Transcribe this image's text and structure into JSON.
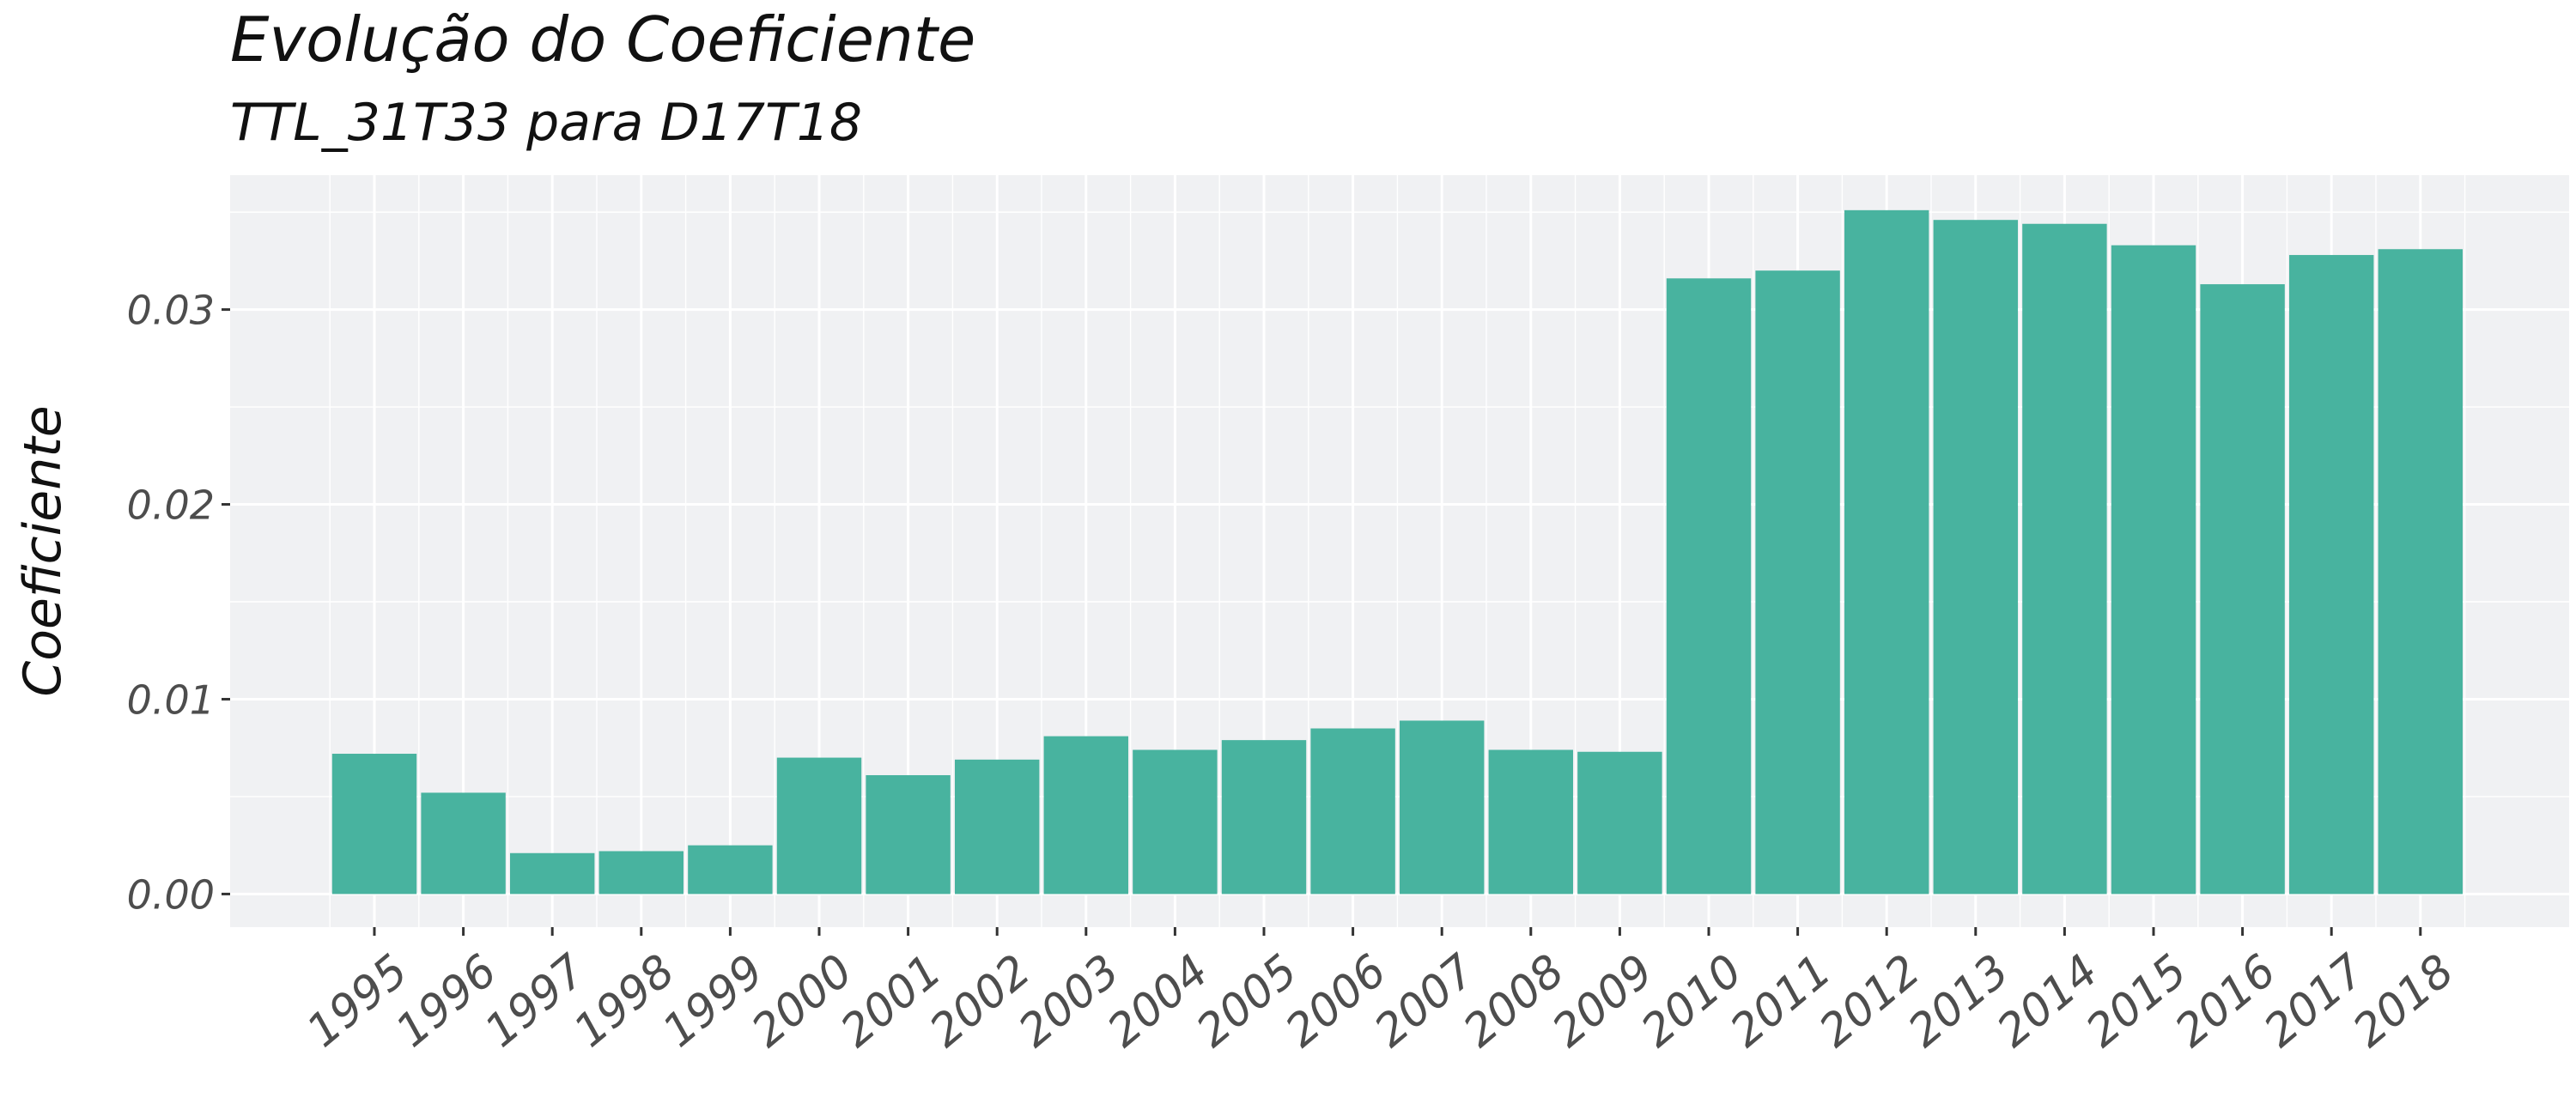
{
  "chart_data": {
    "type": "bar",
    "title": "Evolução do Coeficiente",
    "subtitle": "TTL_31T33 para D17T18",
    "xlabel": "",
    "ylabel": "Coeficiente",
    "categories": [
      "1995",
      "1996",
      "1997",
      "1998",
      "1999",
      "2000",
      "2001",
      "2002",
      "2003",
      "2004",
      "2005",
      "2006",
      "2007",
      "2008",
      "2009",
      "2010",
      "2011",
      "2012",
      "2013",
      "2014",
      "2015",
      "2016",
      "2017",
      "2018"
    ],
    "values": [
      0.0072,
      0.0052,
      0.0021,
      0.0022,
      0.0025,
      0.007,
      0.0061,
      0.0069,
      0.0081,
      0.0074,
      0.0079,
      0.0085,
      0.0089,
      0.0074,
      0.0073,
      0.0316,
      0.032,
      0.0351,
      0.0346,
      0.0344,
      0.0333,
      0.0313,
      0.0328,
      0.0331
    ],
    "yticks": [
      0.0,
      0.01,
      0.02,
      0.03
    ],
    "ytick_labels": [
      "0.00",
      "0.01",
      "0.02",
      "0.03"
    ],
    "ylim": [
      -0.0017,
      0.0369
    ],
    "grid": true,
    "colors": {
      "bar": "#48b39f",
      "panel_background": "#f0f1f3",
      "grid": "#ffffff",
      "text": "#4d4d4d",
      "title": "#111111"
    }
  }
}
